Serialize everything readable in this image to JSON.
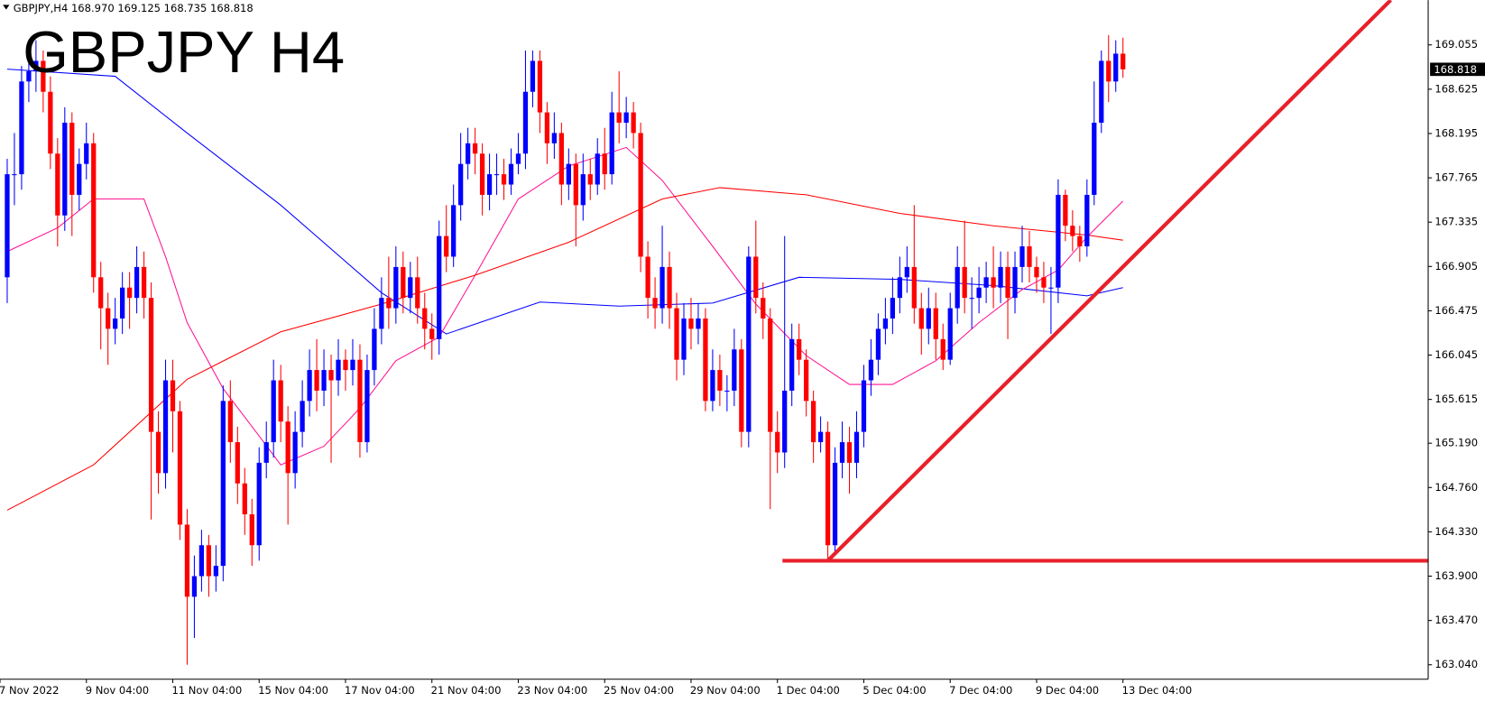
{
  "chart_data": {
    "type": "candlestick",
    "title": "GBPJPY H4",
    "info": "GBPJPY,H4  168.970 169.125 168.735 168.818",
    "up_color": "#0000ff",
    "down_color": "#ff0000",
    "title_color": "#ff0000",
    "open": [
      166.8,
      167.8,
      167.8,
      168.7,
      168.8,
      168.9,
      168.6,
      168.0,
      167.4,
      168.3,
      167.6,
      167.9,
      168.1,
      166.8,
      166.5,
      166.3,
      166.4,
      166.7,
      166.6,
      166.9,
      166.6,
      165.3,
      164.9,
      165.8,
      165.5,
      164.4,
      163.7,
      163.9,
      164.2,
      163.9,
      164.0,
      165.6,
      165.2,
      164.8,
      164.5,
      164.2,
      165.0,
      165.2,
      165.8,
      165.4,
      164.9,
      165.3,
      165.6,
      165.9,
      165.7,
      165.9,
      165.8,
      166.0,
      165.9,
      166.0,
      165.2,
      165.9,
      166.3,
      166.6,
      166.5,
      166.9,
      166.6,
      166.8,
      166.5,
      166.3,
      166.2,
      167.2,
      167.0,
      167.5,
      167.9,
      168.1,
      168.0,
      167.6,
      167.8,
      167.8,
      167.7,
      167.9,
      168.0,
      168.6,
      168.9,
      168.4,
      168.1,
      168.2,
      167.7,
      167.9,
      167.5,
      167.8,
      167.7,
      168.0,
      167.8,
      168.4,
      168.3,
      168.4,
      168.2,
      167.0,
      166.6,
      166.5,
      166.9,
      166.5,
      166.0,
      166.4,
      166.3,
      166.4,
      165.6,
      165.9,
      165.7,
      165.7,
      166.1,
      165.3,
      167.0,
      166.6,
      166.4,
      165.3,
      165.1,
      165.7,
      166.2,
      166.0,
      165.6,
      165.2,
      165.3,
      164.2,
      165.0,
      165.2,
      165.0,
      165.3,
      165.8,
      166.0,
      166.3,
      166.4,
      166.6,
      166.8,
      166.9,
      166.5,
      166.3,
      166.5,
      166.2,
      166.0,
      166.5,
      166.9,
      166.6,
      166.6,
      166.7,
      166.8,
      166.7,
      166.9,
      166.6,
      166.9,
      167.1,
      166.9,
      166.8,
      166.7,
      166.7,
      167.6,
      167.3,
      167.2,
      167.1,
      167.6,
      168.3,
      168.9,
      168.7,
      168.97
    ],
    "high": [
      167.95,
      168.2,
      168.85,
      169.0,
      169.1,
      169.0,
      168.75,
      168.15,
      168.45,
      168.4,
      168.05,
      168.3,
      168.2,
      166.95,
      166.65,
      166.6,
      166.85,
      166.85,
      167.1,
      167.05,
      166.75,
      165.5,
      166.0,
      166.0,
      165.6,
      164.55,
      164.1,
      164.35,
      164.3,
      164.2,
      165.75,
      165.8,
      165.35,
      164.95,
      164.65,
      165.15,
      165.4,
      166.0,
      165.95,
      165.55,
      165.5,
      165.8,
      166.1,
      166.2,
      166.1,
      166.05,
      166.2,
      166.1,
      166.2,
      166.15,
      166.05,
      166.5,
      166.8,
      167.0,
      167.1,
      167.05,
      166.95,
      167.0,
      166.65,
      166.45,
      167.35,
      167.5,
      167.7,
      168.2,
      168.25,
      168.25,
      168.1,
      168.0,
      168.0,
      167.95,
      168.05,
      168.2,
      169.0,
      169.0,
      169.0,
      168.5,
      168.4,
      168.3,
      168.05,
      168.0,
      168.0,
      167.95,
      168.15,
      168.25,
      168.6,
      168.8,
      168.55,
      168.5,
      168.3,
      167.15,
      166.8,
      167.3,
      167.05,
      166.65,
      166.55,
      166.6,
      166.55,
      166.5,
      166.1,
      166.05,
      165.85,
      166.3,
      166.2,
      167.1,
      167.35,
      166.75,
      166.5,
      165.5,
      167.2,
      166.35,
      166.35,
      166.1,
      165.7,
      165.45,
      165.4,
      165.15,
      165.4,
      165.35,
      165.5,
      165.95,
      166.2,
      166.45,
      166.6,
      166.8,
      167.0,
      167.1,
      167.5,
      166.65,
      166.7,
      166.65,
      166.35,
      166.65,
      167.1,
      167.35,
      166.8,
      166.9,
      166.95,
      167.1,
      167.05,
      167.05,
      167.05,
      167.3,
      167.25,
      167.0,
      166.95,
      166.9,
      167.75,
      167.65,
      167.45,
      167.3,
      167.75,
      168.7,
      169.0,
      169.15,
      169.1,
      169.125
    ],
    "low": [
      166.55,
      167.5,
      167.65,
      168.5,
      168.6,
      168.4,
      167.85,
      167.1,
      167.25,
      167.2,
      167.45,
      167.75,
      166.65,
      166.1,
      165.95,
      166.15,
      166.25,
      166.3,
      166.45,
      166.4,
      164.45,
      164.7,
      164.75,
      165.1,
      164.25,
      163.04,
      163.3,
      163.75,
      163.7,
      163.75,
      163.85,
      165.0,
      164.6,
      164.3,
      164.0,
      164.05,
      164.85,
      165.05,
      165.2,
      164.4,
      164.75,
      165.15,
      165.45,
      165.5,
      165.55,
      165.0,
      165.65,
      165.7,
      165.75,
      165.05,
      165.1,
      165.75,
      166.15,
      166.3,
      166.35,
      166.45,
      166.45,
      166.35,
      166.1,
      166.0,
      166.05,
      166.85,
      166.9,
      167.35,
      167.75,
      167.8,
      167.4,
      167.45,
      167.6,
      167.55,
      167.6,
      167.8,
      167.85,
      168.45,
      168.2,
      167.9,
      167.95,
      167.5,
      167.55,
      167.1,
      167.35,
      167.55,
      167.6,
      167.65,
      167.7,
      168.1,
      168.15,
      168.05,
      166.85,
      166.4,
      166.3,
      166.35,
      166.3,
      165.8,
      165.85,
      166.1,
      166.15,
      165.5,
      165.5,
      165.55,
      165.5,
      165.55,
      165.15,
      165.15,
      166.45,
      166.2,
      164.55,
      164.9,
      164.95,
      165.55,
      165.85,
      165.45,
      165.0,
      165.1,
      164.05,
      164.1,
      164.85,
      164.7,
      164.85,
      165.15,
      165.65,
      165.85,
      166.15,
      166.25,
      166.45,
      166.65,
      166.35,
      166.05,
      166.15,
      166.0,
      165.9,
      165.95,
      166.35,
      166.45,
      166.3,
      166.45,
      166.55,
      166.5,
      166.55,
      166.2,
      166.45,
      166.75,
      166.75,
      166.65,
      166.55,
      166.25,
      166.55,
      167.15,
      167.05,
      166.95,
      167.0,
      167.5,
      168.2,
      168.5,
      168.6,
      168.735
    ],
    "close": [
      167.8,
      167.8,
      168.7,
      168.8,
      168.9,
      168.6,
      168.0,
      167.4,
      168.3,
      167.6,
      167.9,
      168.1,
      166.8,
      166.5,
      166.3,
      166.4,
      166.7,
      166.6,
      166.9,
      166.6,
      165.3,
      164.9,
      165.8,
      165.5,
      164.4,
      163.7,
      163.9,
      164.2,
      163.9,
      164.0,
      165.6,
      165.2,
      164.8,
      164.5,
      164.2,
      165.0,
      165.2,
      165.8,
      165.4,
      164.9,
      165.3,
      165.6,
      165.9,
      165.7,
      165.9,
      165.8,
      166.0,
      165.9,
      166.0,
      165.2,
      165.9,
      166.3,
      166.6,
      166.5,
      166.9,
      166.6,
      166.8,
      166.5,
      166.3,
      166.2,
      167.2,
      167.0,
      167.5,
      167.9,
      168.1,
      168.0,
      167.6,
      167.8,
      167.8,
      167.7,
      167.9,
      168.0,
      168.6,
      168.9,
      168.4,
      168.1,
      168.2,
      167.7,
      167.9,
      167.5,
      167.8,
      167.7,
      168.0,
      167.8,
      168.4,
      168.3,
      168.4,
      168.2,
      167.0,
      166.6,
      166.5,
      166.9,
      166.5,
      166.0,
      166.4,
      166.3,
      166.4,
      165.6,
      165.9,
      165.7,
      165.7,
      166.1,
      165.3,
      167.0,
      166.6,
      166.4,
      165.3,
      165.1,
      165.7,
      166.2,
      166.0,
      165.6,
      165.2,
      165.3,
      164.2,
      165.0,
      165.2,
      165.0,
      165.3,
      165.8,
      166.0,
      166.3,
      166.4,
      166.6,
      166.8,
      166.9,
      166.5,
      166.3,
      166.5,
      166.2,
      166.0,
      166.5,
      166.9,
      166.6,
      166.6,
      166.7,
      166.8,
      166.7,
      166.9,
      166.6,
      166.9,
      167.1,
      166.9,
      166.8,
      166.7,
      166.7,
      167.6,
      167.3,
      167.2,
      167.1,
      167.6,
      168.3,
      168.9,
      168.7,
      168.97,
      168.818
    ],
    "lines": [
      {
        "color": "#0000ff",
        "x": [
          0,
          15,
          25,
          38,
          52,
          61,
          74,
          85,
          98,
          110,
          124,
          137,
          150,
          155
        ],
        "values": [
          168.82,
          168.75,
          168.2,
          167.5,
          166.65,
          166.25,
          166.56,
          166.52,
          166.55,
          166.8,
          166.78,
          166.72,
          166.62,
          166.7
        ]
      },
      {
        "color": "#ff1493",
        "x": [
          0,
          7,
          12,
          19,
          22,
          25,
          30,
          35,
          38,
          44,
          49,
          54,
          60,
          65,
          71,
          78,
          86,
          91,
          98,
          104,
          111,
          117,
          123,
          129,
          135,
          141,
          146,
          150,
          155
        ],
        "values": [
          167.05,
          167.28,
          167.56,
          167.56,
          167.0,
          166.36,
          165.72,
          165.26,
          164.98,
          165.16,
          165.53,
          165.99,
          166.22,
          166.82,
          167.56,
          167.88,
          168.06,
          167.74,
          167.1,
          166.54,
          166.04,
          165.76,
          165.76,
          165.99,
          166.36,
          166.68,
          166.87,
          167.19,
          167.54
        ]
      },
      {
        "color": "#ff0000",
        "x": [
          0,
          12,
          25,
          38,
          52,
          65,
          78,
          91,
          99,
          111,
          124,
          137,
          150,
          155
        ],
        "values": [
          164.54,
          164.98,
          165.81,
          166.27,
          166.54,
          166.82,
          167.14,
          167.56,
          167.67,
          167.6,
          167.42,
          167.3,
          167.21,
          167.16
        ]
      }
    ],
    "trendlines": [
      {
        "color": "#e8202a",
        "x": [
          107.7,
          197.4
        ],
        "values": [
          164.05,
          164.05
        ]
      },
      {
        "color": "#e8202a",
        "x": [
          114,
          192.2
        ],
        "values": [
          164.05,
          169.49
        ]
      }
    ],
    "xlim": [
      -1,
      197.4
    ],
    "ylim": [
      162.9,
      169.49
    ],
    "yticks": [
      169.055,
      168.625,
      168.195,
      167.765,
      167.335,
      166.905,
      166.475,
      166.045,
      165.615,
      {
        "value": 165.19,
        "label": "165.190"
      },
      {
        "value": 164.76,
        "label": "164.760"
      },
      {
        "value": 164.33,
        "label": "164.330"
      },
      {
        "value": 163.9,
        "label": "163.900"
      },
      {
        "value": 163.47,
        "label": "163.470"
      },
      {
        "value": 163.04,
        "label": "163.040"
      }
    ],
    "xticks": [
      {
        "value": -1,
        "label": "7 Nov 2022"
      },
      {
        "value": 11,
        "label": "9 Nov 04:00"
      },
      {
        "value": 23,
        "label": "11 Nov 04:00"
      },
      {
        "value": 35,
        "label": "15 Nov 04:00"
      },
      {
        "value": 47,
        "label": "17 Nov 04:00"
      },
      {
        "value": 59,
        "label": "21 Nov 04:00"
      },
      {
        "value": 71,
        "label": "23 Nov 04:00"
      },
      {
        "value": 83,
        "label": "25 Nov 04:00"
      },
      {
        "value": 95,
        "label": "29 Nov 04:00"
      },
      {
        "value": 107,
        "label": "1 Dec 04:00"
      },
      {
        "value": 119,
        "label": "5 Dec 04:00"
      },
      {
        "value": 131,
        "label": "7 Dec 04:00"
      },
      {
        "value": 143,
        "label": "9 Dec 04:00"
      },
      {
        "value": 155,
        "label": "13 Dec 04:00"
      }
    ]
  }
}
